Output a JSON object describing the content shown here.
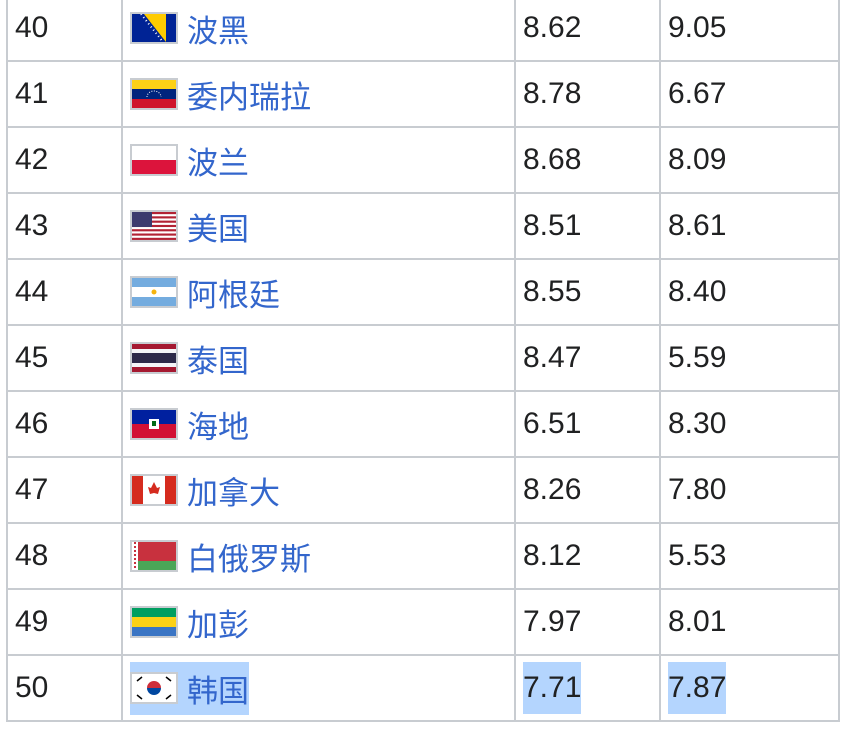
{
  "rows": [
    {
      "rank": "40",
      "country": "波黑",
      "flag": "bosnia-flag",
      "v1": "8.62",
      "v2": "9.05"
    },
    {
      "rank": "41",
      "country": "委内瑞拉",
      "flag": "venezuela-flag",
      "v1": "8.78",
      "v2": "6.67"
    },
    {
      "rank": "42",
      "country": "波兰",
      "flag": "poland-flag",
      "v1": "8.68",
      "v2": "8.09"
    },
    {
      "rank": "43",
      "country": "美国",
      "flag": "usa-flag",
      "v1": "8.51",
      "v2": "8.61"
    },
    {
      "rank": "44",
      "country": "阿根廷",
      "flag": "argentina-flag",
      "v1": "8.55",
      "v2": "8.40"
    },
    {
      "rank": "45",
      "country": "泰国",
      "flag": "thailand-flag",
      "v1": "8.47",
      "v2": "5.59"
    },
    {
      "rank": "46",
      "country": "海地",
      "flag": "haiti-flag",
      "v1": "6.51",
      "v2": "8.30"
    },
    {
      "rank": "47",
      "country": "加拿大",
      "flag": "canada-flag",
      "v1": "8.26",
      "v2": "7.80"
    },
    {
      "rank": "48",
      "country": "白俄罗斯",
      "flag": "belarus-flag",
      "v1": "8.12",
      "v2": "5.53"
    },
    {
      "rank": "49",
      "country": "加彭",
      "flag": "gabon-flag",
      "v1": "7.97",
      "v2": "8.01"
    },
    {
      "rank": "50",
      "country": "韩国",
      "flag": "south-korea-flag",
      "v1": "7.71",
      "v2": "7.87",
      "selected": true
    }
  ],
  "colors": {
    "link": "#3366cc",
    "border": "#c8ccd1",
    "selection": "#b4d5fe"
  }
}
